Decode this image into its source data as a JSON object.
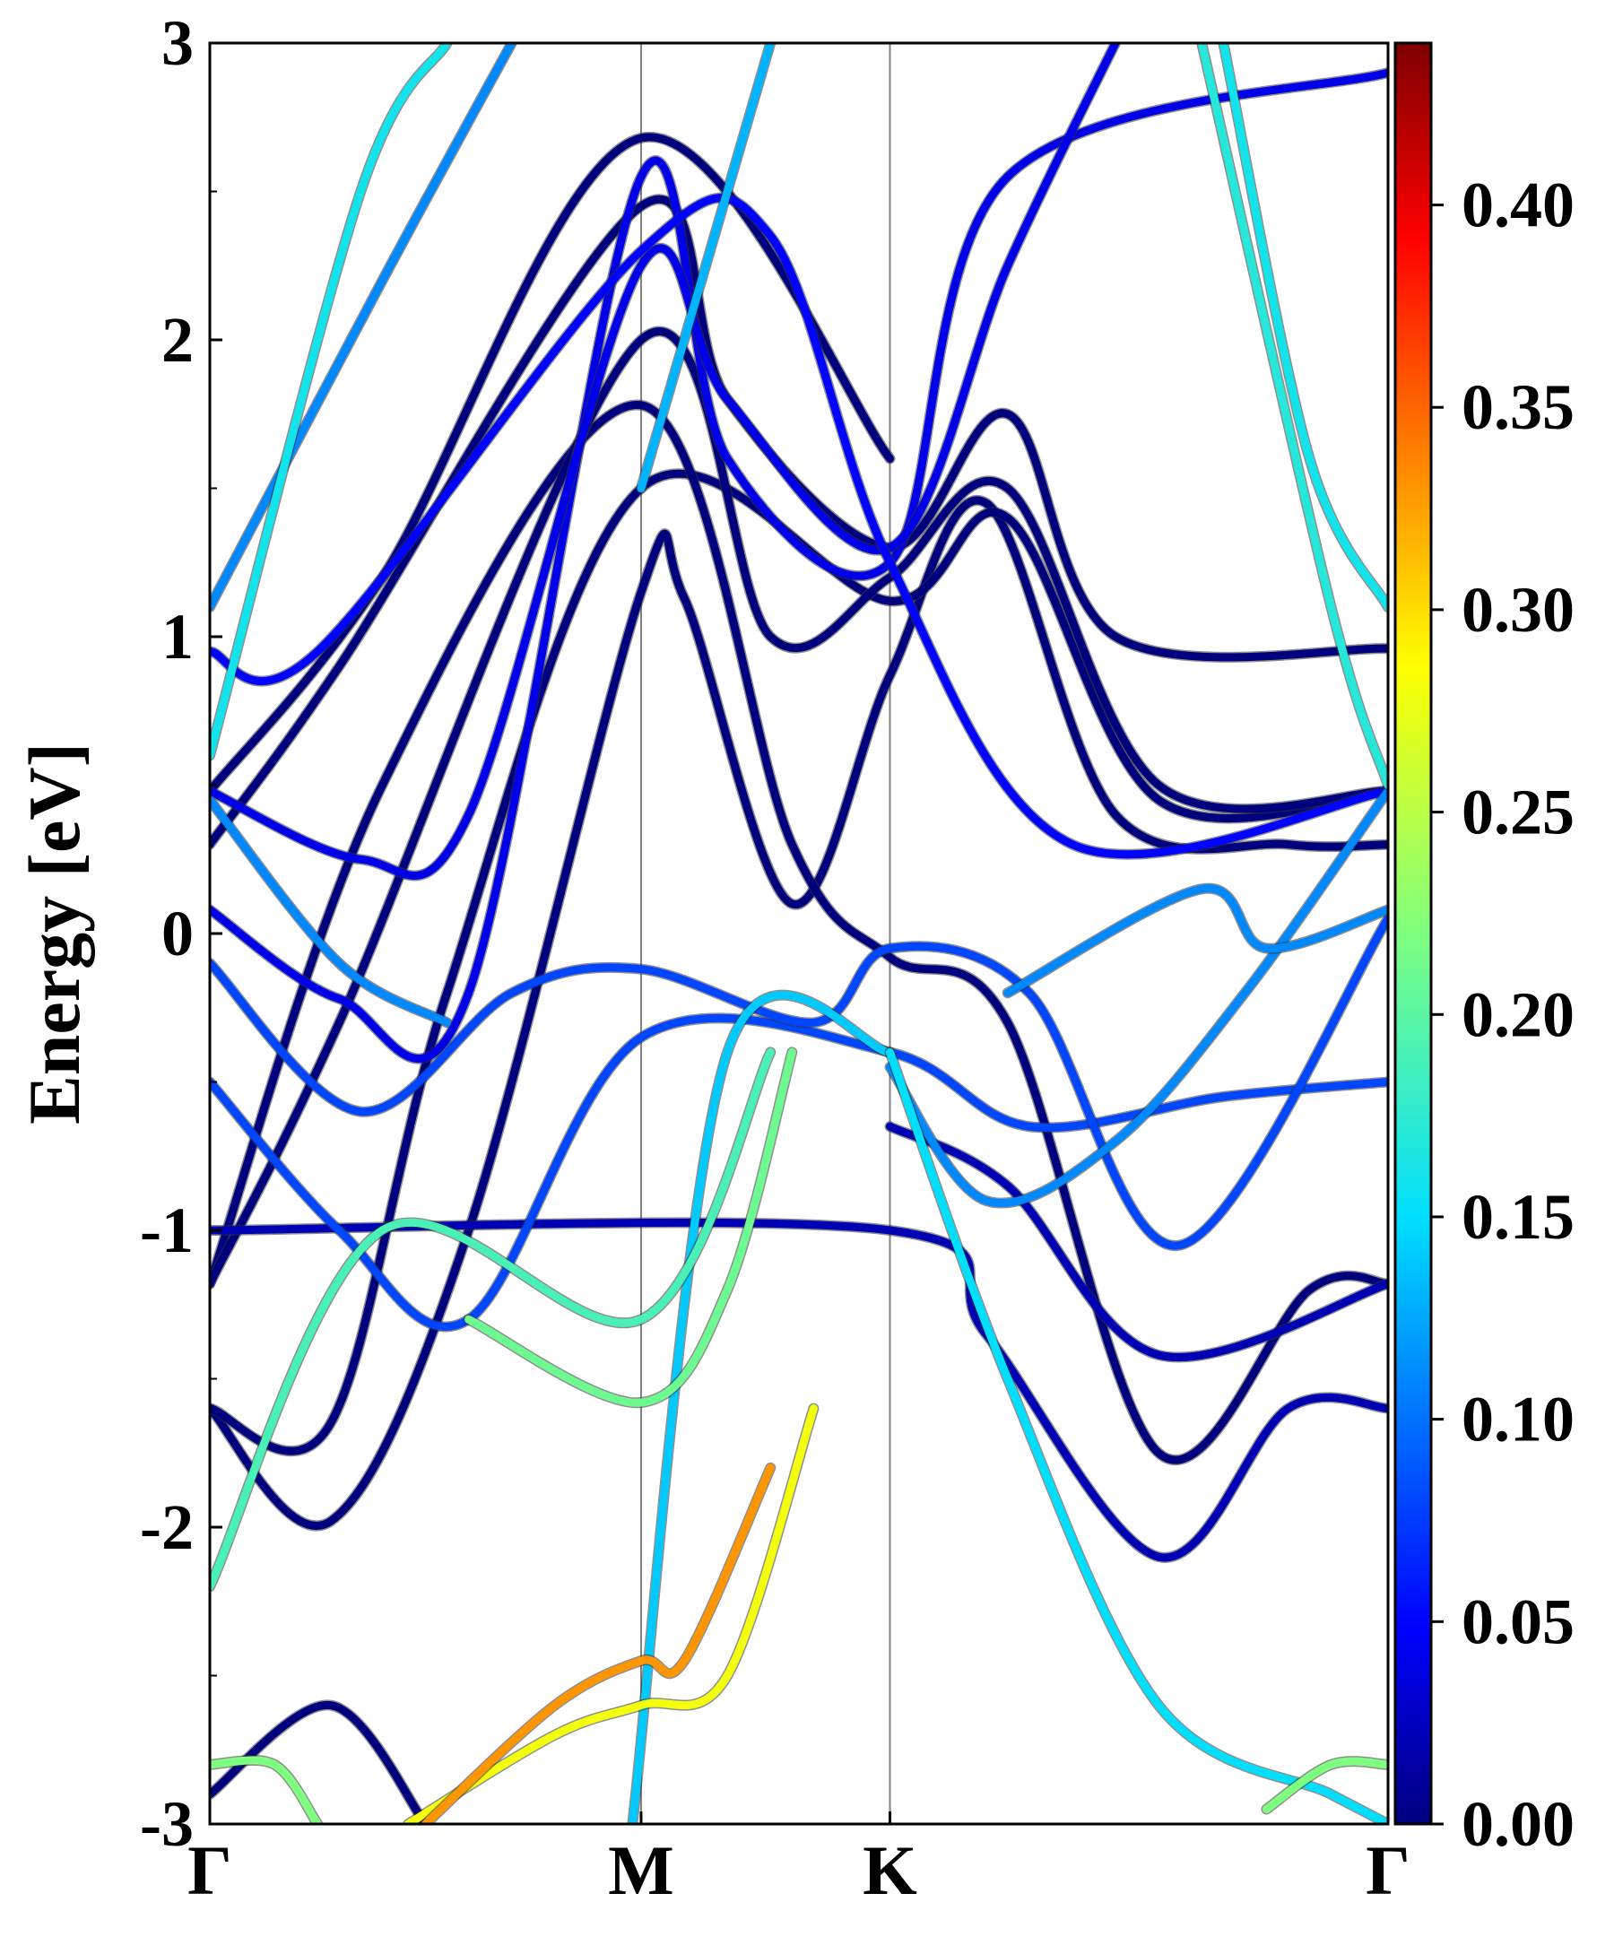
{
  "chart_data": {
    "type": "line",
    "title": "",
    "ylabel": "Energy [eV]",
    "xlabel": "",
    "ylim": [
      -3,
      3
    ],
    "x_ticks": [
      {
        "label": "Γ",
        "pos": 0.0
      },
      {
        "label": "M",
        "pos": 1.0
      },
      {
        "label": "K",
        "pos": 1.577
      },
      {
        "label": "Γ",
        "pos": 2.732
      }
    ],
    "y_ticks": [
      "-3",
      "-2",
      "-1",
      "0",
      "1",
      "2",
      "3"
    ],
    "y_tick_values": [
      -3,
      -2,
      -1,
      0,
      1,
      2,
      3
    ],
    "colorbar": {
      "range": [
        0.0,
        0.44
      ],
      "tick_values": [
        0.0,
        0.05,
        0.1,
        0.15,
        0.2,
        0.25,
        0.3,
        0.35,
        0.4
      ],
      "tick_labels": [
        "0.00",
        "0.05",
        "0.10",
        "0.15",
        "0.20",
        "0.25",
        "0.30",
        "0.35",
        "0.40"
      ],
      "colormap": "jet"
    },
    "series": [
      {
        "weight": 0.0,
        "points": [
          [
            0,
            -1.6
          ],
          [
            0.28,
            -1.98
          ],
          [
            0.6,
            -1.0
          ],
          [
            1.0,
            1.15
          ],
          [
            1.1,
            1.13
          ],
          [
            1.35,
            0.1
          ],
          [
            1.577,
            0.87
          ],
          [
            1.8,
            1.45
          ],
          [
            2.1,
            0.4
          ],
          [
            2.5,
            0.3
          ],
          [
            2.732,
            0.3
          ]
        ]
      },
      {
        "weight": 0.0,
        "points": [
          [
            0,
            -1.6
          ],
          [
            0.28,
            -1.65
          ],
          [
            0.55,
            -0.2
          ],
          [
            1.0,
            1.5
          ],
          [
            1.577,
            1.12
          ],
          [
            1.85,
            1.4
          ],
          [
            2.2,
            0.45
          ],
          [
            2.732,
            0.48
          ]
        ]
      },
      {
        "weight": 0.0,
        "points": [
          [
            0,
            -1.18
          ],
          [
            0.4,
            0.5
          ],
          [
            1.0,
            1.78
          ],
          [
            1.35,
            0.3
          ],
          [
            1.577,
            -0.08
          ],
          [
            1.85,
            -0.3
          ],
          [
            2.2,
            -1.75
          ],
          [
            2.55,
            -1.2
          ],
          [
            2.732,
            -1.18
          ]
        ]
      },
      {
        "weight": 0.0,
        "points": [
          [
            0,
            -1.18
          ],
          [
            0.3,
            -0.3
          ],
          [
            1.0,
            2.0
          ],
          [
            1.3,
            1.0
          ],
          [
            1.577,
            1.2
          ],
          [
            1.85,
            1.5
          ],
          [
            2.2,
            0.5
          ],
          [
            2.732,
            0.48
          ]
        ]
      },
      {
        "weight": 0.0,
        "points": [
          [
            0,
            -2.9
          ],
          [
            0.28,
            -2.6
          ],
          [
            0.5,
            -3.0
          ]
        ]
      },
      {
        "weight": 0.0,
        "points": [
          [
            0,
            0.3
          ],
          [
            0.3,
            0.9
          ],
          [
            1.0,
            2.45
          ],
          [
            1.2,
            1.8
          ],
          [
            1.577,
            1.3
          ],
          [
            1.85,
            1.75
          ],
          [
            2.1,
            1.0
          ],
          [
            2.732,
            0.96
          ]
        ]
      },
      {
        "weight": 0.0,
        "points": [
          [
            0,
            0.48
          ],
          [
            0.4,
            1.2
          ],
          [
            1.0,
            2.68
          ],
          [
            1.577,
            1.6
          ]
        ]
      },
      {
        "weight": 0.02,
        "points": [
          [
            0,
            -1.0
          ],
          [
            1.577,
            -1.0
          ],
          [
            1.8,
            -1.35
          ],
          [
            2.2,
            -2.1
          ],
          [
            2.5,
            -1.6
          ],
          [
            2.732,
            -1.6
          ]
        ]
      },
      {
        "weight": 0.02,
        "points": [
          [
            1.577,
            -0.65
          ],
          [
            1.85,
            -0.85
          ],
          [
            2.2,
            -1.42
          ],
          [
            2.732,
            -1.18
          ]
        ]
      },
      {
        "weight": 0.04,
        "points": [
          [
            0,
            0.08
          ],
          [
            0.3,
            -0.22
          ],
          [
            0.6,
            -0.2
          ],
          [
            1.0,
            2.55
          ],
          [
            1.2,
            1.6
          ],
          [
            1.577,
            1.25
          ],
          [
            1.85,
            2.55
          ],
          [
            2.732,
            2.9
          ]
        ]
      },
      {
        "weight": 0.04,
        "points": [
          [
            0,
            0.48
          ],
          [
            0.35,
            0.25
          ],
          [
            0.6,
            0.4
          ],
          [
            1.0,
            2.25
          ],
          [
            1.2,
            1.8
          ],
          [
            1.577,
            1.3
          ],
          [
            1.85,
            2.25
          ],
          [
            2.1,
            3.0
          ]
        ]
      },
      {
        "weight": 0.05,
        "points": [
          [
            0,
            0.95
          ],
          [
            0.25,
            0.95
          ],
          [
            1.0,
            2.3
          ],
          [
            1.3,
            2.35
          ],
          [
            1.577,
            1.25
          ],
          [
            2.0,
            0.3
          ],
          [
            2.732,
            0.48
          ]
        ]
      },
      {
        "weight": 0.08,
        "points": [
          [
            0,
            -0.5
          ],
          [
            0.3,
            -1.0
          ],
          [
            0.6,
            -1.3
          ],
          [
            1.0,
            -0.35
          ],
          [
            1.577,
            -0.4
          ],
          [
            1.9,
            -0.65
          ],
          [
            2.35,
            -0.55
          ],
          [
            2.732,
            -0.5
          ]
        ]
      },
      {
        "weight": 0.08,
        "points": [
          [
            0,
            -0.1
          ],
          [
            0.35,
            -0.6
          ],
          [
            0.7,
            -0.2
          ],
          [
            1.0,
            -0.12
          ],
          [
            1.4,
            -0.3
          ],
          [
            1.577,
            -0.05
          ],
          [
            1.9,
            -0.2
          ],
          [
            2.25,
            -1.05
          ],
          [
            2.732,
            0.05
          ]
        ]
      },
      {
        "weight": 0.11,
        "points": [
          [
            0,
            1.1
          ],
          [
            0.4,
            2.2
          ],
          [
            0.7,
            3.0
          ]
        ]
      },
      {
        "weight": 0.11,
        "points": [
          [
            0,
            0.45
          ],
          [
            0.3,
            -0.1
          ],
          [
            0.55,
            -0.3
          ]
        ]
      },
      {
        "weight": 0.11,
        "points": [
          [
            1.577,
            -0.45
          ],
          [
            1.8,
            -0.9
          ],
          [
            2.1,
            -0.7
          ],
          [
            2.4,
            -0.2
          ],
          [
            2.732,
            0.48
          ]
        ]
      },
      {
        "weight": 0.11,
        "points": [
          [
            1.85,
            -0.2
          ],
          [
            2.3,
            0.15
          ],
          [
            2.45,
            -0.05
          ],
          [
            2.732,
            0.08
          ]
        ]
      },
      {
        "weight": 0.13,
        "points": [
          [
            1.0,
            1.5
          ],
          [
            1.3,
            3.0
          ]
        ]
      },
      {
        "weight": 0.14,
        "points": [
          [
            0.98,
            -3.0
          ],
          [
            1.2,
            -0.4
          ],
          [
            1.577,
            -0.4
          ]
        ]
      },
      {
        "weight": 0.15,
        "points": [
          [
            1.577,
            -0.4
          ],
          [
            1.85,
            -1.5
          ],
          [
            2.2,
            -2.6
          ],
          [
            2.6,
            -2.9
          ],
          [
            2.732,
            -3.0
          ]
        ]
      },
      {
        "weight": 0.16,
        "points": [
          [
            0,
            0.6
          ],
          [
            0.35,
            2.5
          ],
          [
            0.55,
            3.0
          ]
        ]
      },
      {
        "weight": 0.16,
        "points": [
          [
            2.35,
            3.0
          ],
          [
            2.55,
            1.6
          ],
          [
            2.732,
            1.1
          ]
        ]
      },
      {
        "weight": 0.17,
        "points": [
          [
            2.3,
            3.0
          ],
          [
            2.6,
            1.1
          ],
          [
            2.732,
            0.5
          ]
        ]
      },
      {
        "weight": 0.19,
        "points": [
          [
            0,
            -2.2
          ],
          [
            0.4,
            -1.0
          ],
          [
            1.0,
            -1.3
          ],
          [
            1.3,
            -0.4
          ]
        ]
      },
      {
        "weight": 0.21,
        "points": [
          [
            0.6,
            -1.3
          ],
          [
            1.0,
            -1.58
          ],
          [
            1.2,
            -1.2
          ],
          [
            1.35,
            -0.4
          ]
        ]
      },
      {
        "weight": 0.22,
        "points": [
          [
            0,
            -2.8
          ],
          [
            0.15,
            -2.8
          ],
          [
            0.25,
            -3.0
          ]
        ]
      },
      {
        "weight": 0.22,
        "points": [
          [
            2.45,
            -2.95
          ],
          [
            2.6,
            -2.8
          ],
          [
            2.732,
            -2.8
          ]
        ]
      },
      {
        "weight": 0.28,
        "points": [
          [
            0.46,
            -3.0
          ],
          [
            0.8,
            -2.7
          ],
          [
            1.0,
            -2.6
          ],
          [
            1.2,
            -2.5
          ],
          [
            1.4,
            -1.6
          ]
        ]
      },
      {
        "weight": 0.33,
        "points": [
          [
            0.5,
            -3.0
          ],
          [
            0.8,
            -2.6
          ],
          [
            1.0,
            -2.45
          ],
          [
            1.1,
            -2.45
          ],
          [
            1.3,
            -1.8
          ]
        ]
      }
    ]
  }
}
